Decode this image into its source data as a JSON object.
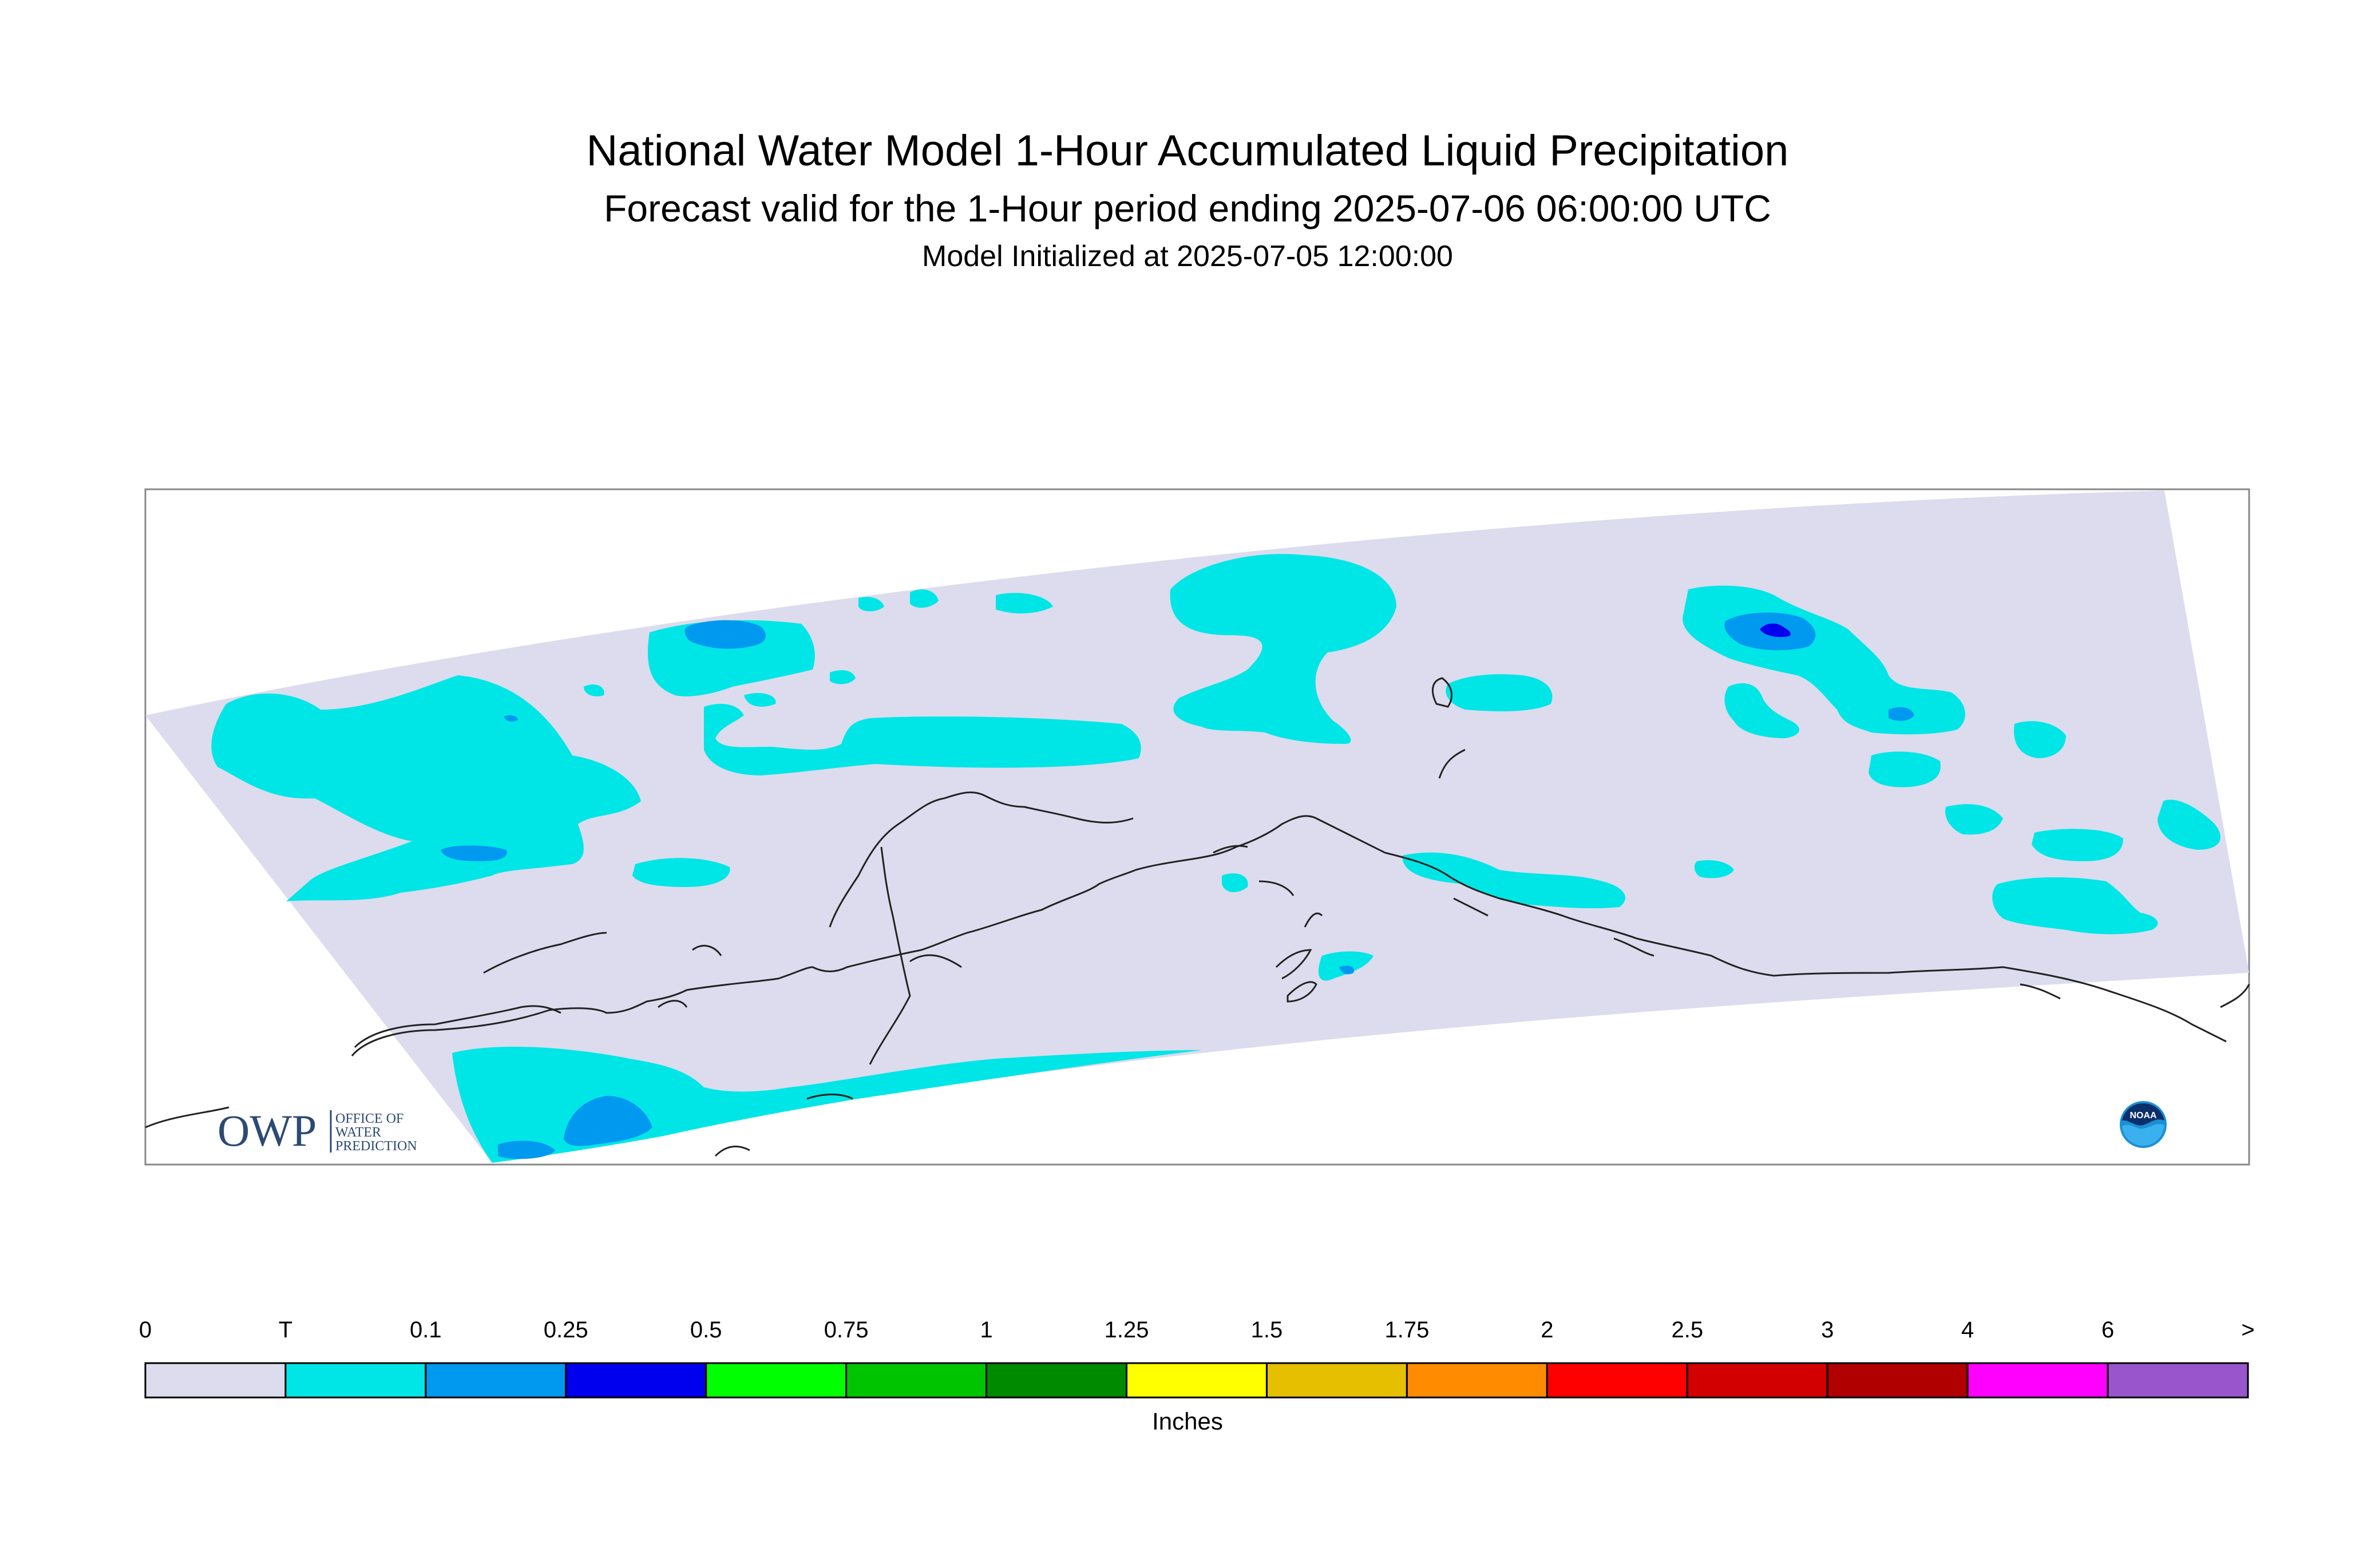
{
  "title": "National Water Model 1-Hour Accumulated Liquid Precipitation",
  "subtitle": "Forecast valid for the 1-Hour period ending 2025-07-06 06:00:00 UTC",
  "initialized": "Model Initialized at 2025-07-05 12:00:00",
  "colors": {
    "no_precip": "#dcdcee",
    "trace": "#00e6e6",
    "light_blue": "#0099f0",
    "blue": "#0000ee",
    "background": "#ffffff",
    "coastline": "#222222"
  },
  "legend": {
    "units": "Inches",
    "labels": [
      "0",
      "T",
      "0.1",
      "0.25",
      "0.5",
      "0.75",
      "1",
      "1.25",
      "1.5",
      "1.75",
      "2",
      "2.5",
      "3",
      "4",
      "6",
      ">"
    ],
    "bins": [
      {
        "color": "#dcdcee"
      },
      {
        "color": "#00e6e6"
      },
      {
        "color": "#0099f0"
      },
      {
        "color": "#0000ee"
      },
      {
        "color": "#00ff00"
      },
      {
        "color": "#00c400"
      },
      {
        "color": "#008a00"
      },
      {
        "color": "#ffff00"
      },
      {
        "color": "#e6c000"
      },
      {
        "color": "#ff8c00"
      },
      {
        "color": "#ff0000"
      },
      {
        "color": "#d20000"
      },
      {
        "color": "#b00000"
      },
      {
        "color": "#ff00ff"
      },
      {
        "color": "#9955cc"
      }
    ]
  },
  "logos": {
    "owp_icon": "owp-office-of-water-prediction-logo",
    "owp_mark": "OWP",
    "owp_text": [
      "OFFICE OF",
      "WATER",
      "PREDICTION"
    ],
    "noaa_icon": "noaa-logo",
    "noaa_text": "NOAA"
  }
}
